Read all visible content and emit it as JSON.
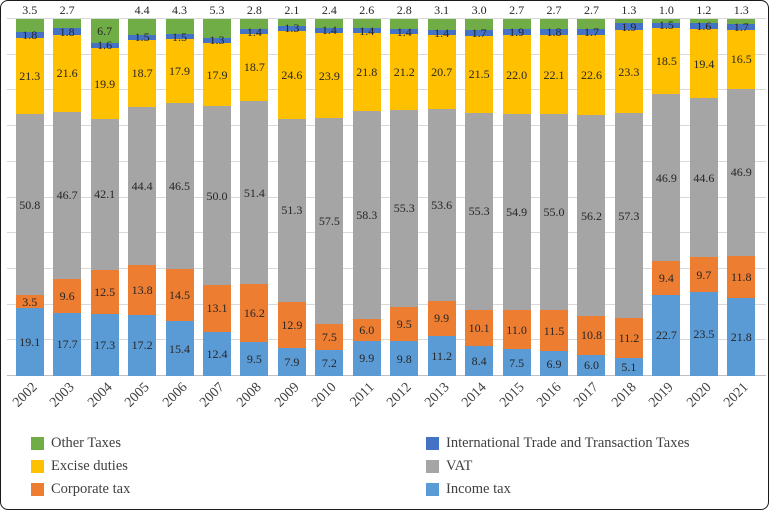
{
  "chart_data": {
    "type": "bar",
    "stacked": true,
    "unit": "percent",
    "title": "",
    "xlabel": "",
    "ylabel": "",
    "ylim": [
      0,
      100
    ],
    "grid": "horizontal",
    "legend_position": "bottom",
    "categories": [
      "2002",
      "2003",
      "2004",
      "2005",
      "2006",
      "2007",
      "2008",
      "2009",
      "2010",
      "2011",
      "2012",
      "2013",
      "2014",
      "2015",
      "2016",
      "2017",
      "2018",
      "2019",
      "2020",
      "2021"
    ],
    "series": [
      {
        "name": "Income tax",
        "color": "#5B9BD5",
        "values": [
          19.1,
          17.7,
          17.3,
          17.2,
          15.4,
          12.4,
          9.5,
          7.9,
          7.2,
          9.9,
          9.8,
          11.2,
          8.4,
          7.5,
          6.9,
          6.0,
          5.1,
          22.7,
          23.5,
          21.8
        ]
      },
      {
        "name": "Corporate tax",
        "color": "#ED7D31",
        "values": [
          3.5,
          9.6,
          12.5,
          13.8,
          14.5,
          13.1,
          16.2,
          12.9,
          7.5,
          6.0,
          9.5,
          9.9,
          10.1,
          11.0,
          11.5,
          10.8,
          11.2,
          9.4,
          9.7,
          11.8
        ]
      },
      {
        "name": "VAT",
        "color": "#A5A5A5",
        "values": [
          50.8,
          46.7,
          42.1,
          44.4,
          46.5,
          50.0,
          51.4,
          51.3,
          57.5,
          58.3,
          55.3,
          53.6,
          55.3,
          54.9,
          55.0,
          56.2,
          57.3,
          46.9,
          44.6,
          46.9
        ]
      },
      {
        "name": "Excise duties",
        "color": "#FFC000",
        "values": [
          21.3,
          21.6,
          19.9,
          18.7,
          17.9,
          17.9,
          18.7,
          24.6,
          23.9,
          21.8,
          21.2,
          20.7,
          21.5,
          22.0,
          22.1,
          22.6,
          23.3,
          18.5,
          19.4,
          16.5
        ]
      },
      {
        "name": "International Trade and Transaction Taxes",
        "color": "#4472C4",
        "values": [
          1.8,
          1.8,
          1.6,
          1.5,
          1.5,
          1.3,
          1.4,
          1.3,
          1.4,
          1.4,
          1.4,
          1.4,
          1.7,
          1.9,
          1.8,
          1.7,
          1.9,
          1.5,
          1.6,
          1.7
        ]
      },
      {
        "name": "Other Taxes",
        "color": "#70AD47",
        "values": [
          3.5,
          2.7,
          6.7,
          4.4,
          4.3,
          5.3,
          2.8,
          2.1,
          2.4,
          2.6,
          2.8,
          3.1,
          3.0,
          2.7,
          2.7,
          2.7,
          1.3,
          1.0,
          1.2,
          1.3
        ]
      }
    ]
  },
  "legend": {
    "columns": [
      [
        {
          "label": "Other Taxes",
          "color": "#70AD47"
        },
        {
          "label": "Excise duties",
          "color": "#FFC000"
        },
        {
          "label": "Corporate tax",
          "color": "#ED7D31"
        }
      ],
      [
        {
          "label": "International Trade and Transaction Taxes",
          "color": "#4472C4"
        },
        {
          "label": "VAT",
          "color": "#A5A5A5"
        },
        {
          "label": "Income tax",
          "color": "#5B9BD5"
        }
      ]
    ]
  }
}
